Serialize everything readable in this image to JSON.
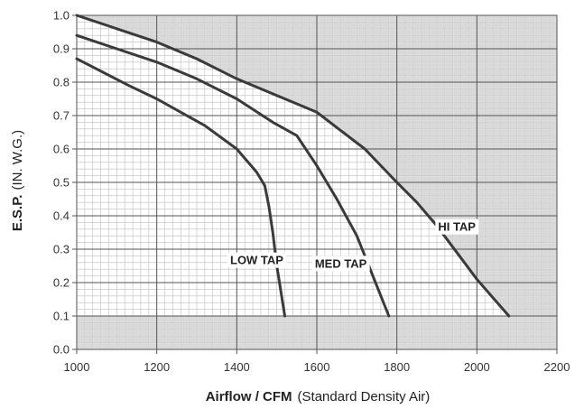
{
  "chart_data": {
    "type": "line",
    "xlabel_bold": "Airflow / CFM",
    "xlabel_rest": "(Standard Density Air)",
    "ylabel_bold": "E.S.P.",
    "ylabel_rest": "(IN. W.G.)",
    "xlim": [
      1000,
      2200
    ],
    "ylim": [
      0.0,
      1.0
    ],
    "x_ticks": [
      1000,
      1200,
      1400,
      1600,
      1800,
      2000,
      2200
    ],
    "y_ticks": [
      0.0,
      0.1,
      0.2,
      0.3,
      0.4,
      0.5,
      0.6,
      0.7,
      0.8,
      0.9,
      1.0
    ],
    "x_tick_labels": [
      "1000",
      "1200",
      "1400",
      "1600",
      "1800",
      "2000",
      "2200"
    ],
    "y_tick_labels": [
      "0.0",
      "0.1",
      "0.2",
      "0.3",
      "0.4",
      "0.5",
      "0.6",
      "0.7",
      "0.8",
      "0.9",
      "1.0"
    ],
    "grid": true,
    "colors": {
      "shaded_region": "#d9d9d9",
      "curve": "#3a3a3a",
      "grid": "#555555",
      "background": "#ffffff"
    },
    "series": [
      {
        "name": "LOW TAP",
        "x": [
          1000,
          1130,
          1200,
          1320,
          1400,
          1450,
          1470,
          1480,
          1490,
          1500,
          1520
        ],
        "y": [
          0.87,
          0.79,
          0.75,
          0.67,
          0.6,
          0.53,
          0.49,
          0.43,
          0.35,
          0.25,
          0.1
        ]
      },
      {
        "name": "MED TAP",
        "x": [
          1000,
          1100,
          1200,
          1300,
          1400,
          1490,
          1550,
          1600,
          1650,
          1700,
          1740,
          1780
        ],
        "y": [
          0.94,
          0.9,
          0.86,
          0.81,
          0.75,
          0.68,
          0.64,
          0.55,
          0.45,
          0.34,
          0.22,
          0.1
        ]
      },
      {
        "name": "HI TAP",
        "x": [
          1000,
          1100,
          1200,
          1300,
          1400,
          1500,
          1600,
          1660,
          1720,
          1760,
          1800,
          1850,
          1900,
          1950,
          2000,
          2080
        ],
        "y": [
          1.0,
          0.96,
          0.92,
          0.87,
          0.81,
          0.76,
          0.71,
          0.655,
          0.6,
          0.55,
          0.5,
          0.44,
          0.37,
          0.29,
          0.21,
          0.1
        ]
      }
    ],
    "shaded_region": {
      "boundary_x": [
        1000,
        1100,
        1200,
        1300,
        1400,
        1500,
        1600,
        1660,
        1720,
        1760,
        1800,
        1850,
        1900,
        1950,
        2000,
        2080
      ],
      "boundary_y": [
        1.0,
        0.96,
        0.92,
        0.87,
        0.81,
        0.76,
        0.71,
        0.655,
        0.6,
        0.55,
        0.5,
        0.44,
        0.37,
        0.29,
        0.21,
        0.1
      ],
      "min_y": 0.1
    },
    "annotations": [
      {
        "text": "LOW TAP",
        "x": 1450,
        "y": 0.255
      },
      {
        "text": "MED TAP",
        "x": 1660,
        "y": 0.245
      },
      {
        "text": "HI TAP",
        "x": 1950,
        "y": 0.355
      }
    ]
  }
}
